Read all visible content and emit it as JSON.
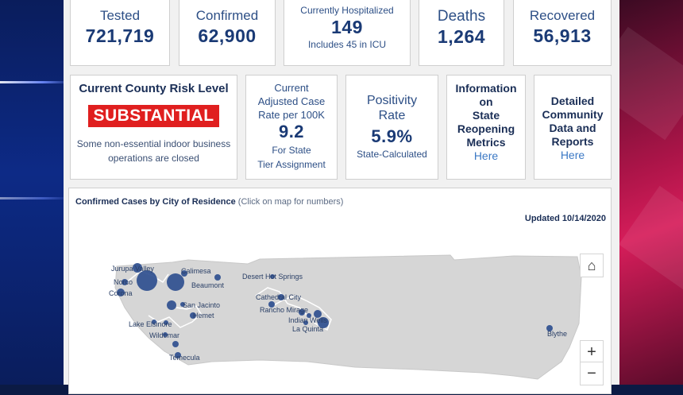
{
  "stats": {
    "tested": {
      "label": "Tested",
      "value": "721,719"
    },
    "confirmed": {
      "label": "Confirmed",
      "value": "62,900"
    },
    "hospitalized": {
      "label": "Currently Hospitalized",
      "value": "149",
      "note": "Includes 45 in ICU"
    },
    "deaths": {
      "label": "Deaths",
      "value": "1,264"
    },
    "recovered": {
      "label": "Recovered",
      "value": "56,913"
    }
  },
  "risk": {
    "title": "Current County Risk Level",
    "level": "SUBSTANTIAL",
    "desc_line1": "Some non-essential indoor business",
    "desc_line2": "operations are closed",
    "badge_color": "#e01f1f"
  },
  "case_rate": {
    "line1": "Current",
    "line2": "Adjusted Case",
    "line3": "Rate per 100K",
    "value": "9.2",
    "note1": "For State",
    "note2": "Tier Assignment"
  },
  "positivity": {
    "line1": "Positivity",
    "line2": "Rate",
    "value": "5.9%",
    "note": "State-Calculated"
  },
  "reopening": {
    "line1": "Information",
    "line2": "on",
    "line3": "State",
    "line4": "Reopening",
    "line5": "Metrics",
    "link": "Here"
  },
  "community": {
    "line1": "Detailed",
    "line2": "Community",
    "line3": "Data and",
    "line4": "Reports",
    "link": "Here"
  },
  "map": {
    "title_bold": "Confirmed Cases by City of Residence",
    "title_hint": "(Click on map for numbers)",
    "updated": "Updated 10/14/2020",
    "cities": {
      "jurupa_valley": "Jurupa Valley",
      "calimesa": "Calimesa",
      "norco": "Norco",
      "beaumont": "Beaumont",
      "corona": "Corona",
      "san_jacinto": "San Jacinto",
      "hemet": "Hemet",
      "lake_elsinore": "Lake Elsinore",
      "wildomar": "Wildomar",
      "temecula": "Temecula",
      "desert_hot_springs": "Desert Hot Springs",
      "cathedral_city": "Cathedral City",
      "rancho_mirage": "Rancho Mirage",
      "indian_wells": "Indian Wells",
      "la_quinta": "La Quinta",
      "blythe": "Blythe"
    },
    "controls": {
      "home": "⌂",
      "zoom_in": "+",
      "zoom_out": "−"
    },
    "bubble_color": "#2f4f8f",
    "county_color": "#d6d6d6"
  }
}
